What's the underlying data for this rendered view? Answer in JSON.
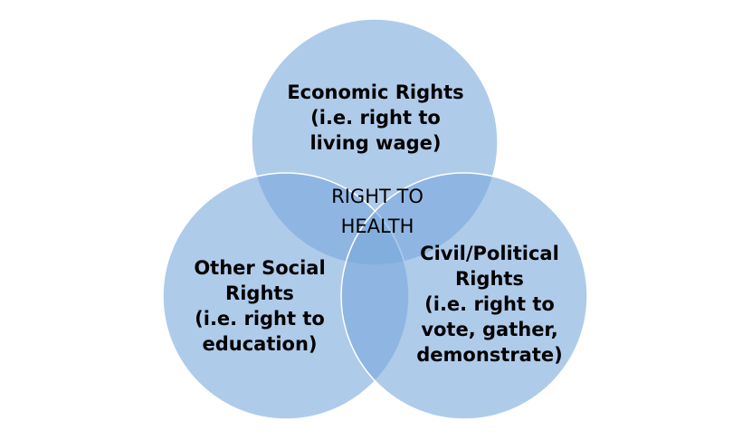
{
  "diagram": {
    "type": "venn",
    "circle_color": "#7aa9dc",
    "center": {
      "lines": [
        "RIGHT TO",
        "HEALTH"
      ]
    },
    "sets": [
      {
        "id": "economic",
        "lines": [
          "Economic Rights",
          "(i.e. right to",
          "living wage)"
        ]
      },
      {
        "id": "social",
        "lines": [
          "Other Social",
          "Rights",
          "(i.e. right to",
          "education)"
        ]
      },
      {
        "id": "civil",
        "lines": [
          "Civil/Political",
          "Rights",
          "(i.e. right to",
          "vote, gather,",
          "demonstrate)"
        ]
      }
    ]
  }
}
